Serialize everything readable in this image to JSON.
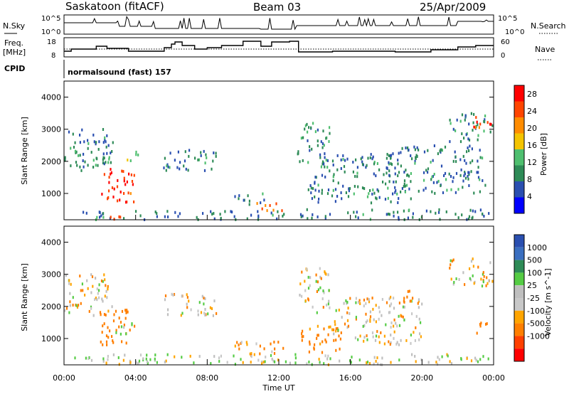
{
  "header": {
    "station": "Saskatoon (fitACF)",
    "beam": "Beam 03",
    "date": "25/Apr/2009"
  },
  "strip_labels": {
    "nsky": "N.Sky",
    "nsearch": "N.Search",
    "freq_line1": "Freq.",
    "freq_line2": "[MHz]",
    "nave": "Nave",
    "cpid": "CPID",
    "cpid_value": "normalsound (fast) 157"
  },
  "strip_ticks": {
    "nsky_top": "10^5",
    "nsky_bottom": "10^0",
    "nsearch_top": "10^5",
    "nsearch_bottom": "10^0",
    "freq_top": "18",
    "freq_bottom": "8",
    "nave_top": "60",
    "nave_bottom": "0"
  },
  "colors": {
    "power_scale": [
      "#0000ff",
      "#2a4fb0",
      "#2e8b57",
      "#4fbf6f",
      "#f4c400",
      "#ff8c00",
      "#ff4500",
      "#ff0000"
    ],
    "velocity_scale": [
      "#2a4fb0",
      "#3a6fc0",
      "#2e8b57",
      "#55cc44",
      "#bfbfbf",
      "#c8c8c8",
      "#ffa500",
      "#ff7f00",
      "#ff4000",
      "#ff0000"
    ]
  },
  "chart_data": [
    {
      "type": "heatmap",
      "panel": "power",
      "xlabel": "",
      "ylabel": "Slant Range [km]",
      "xlim": [
        "00:00",
        "24:00"
      ],
      "ylim": [
        180,
        4500
      ],
      "y_ticks": [
        "1000",
        "2000",
        "3000",
        "4000"
      ],
      "colorbar": {
        "label": "Power [dB]",
        "ticks": [
          "4",
          "8",
          "12",
          "16",
          "20",
          "24",
          "28"
        ],
        "range": [
          0,
          30
        ]
      },
      "regions": [
        {
          "t0": 0.0,
          "t1": 2.7,
          "r0": 1700,
          "r1": 3000,
          "v": 8
        },
        {
          "t0": 2.0,
          "t1": 3.9,
          "r0": 700,
          "r1": 1800,
          "v": 26
        },
        {
          "t0": 1.5,
          "t1": 2.5,
          "r0": 1800,
          "r1": 2200,
          "v": 12
        },
        {
          "t0": 3.5,
          "t1": 4.2,
          "r0": 2000,
          "r1": 2400,
          "v": 14
        },
        {
          "t0": 5.5,
          "t1": 8.5,
          "r0": 1700,
          "r1": 2400,
          "v": 8
        },
        {
          "t0": 9.5,
          "t1": 11.2,
          "r0": 600,
          "r1": 1000,
          "v": 8
        },
        {
          "t0": 10.7,
          "t1": 12.3,
          "r0": 400,
          "r1": 700,
          "v": 22
        },
        {
          "t0": 13.0,
          "t1": 14.8,
          "r0": 1800,
          "r1": 3200,
          "v": 10
        },
        {
          "t0": 14.0,
          "t1": 18.5,
          "r0": 1500,
          "r1": 2300,
          "v": 8
        },
        {
          "t0": 13.5,
          "t1": 19.5,
          "r0": 700,
          "r1": 1400,
          "v": 8
        },
        {
          "t0": 18.0,
          "t1": 23.5,
          "r0": 1000,
          "r1": 2500,
          "v": 8
        },
        {
          "t0": 21.5,
          "t1": 23.9,
          "r0": 2600,
          "r1": 3500,
          "v": 9
        },
        {
          "t0": 22.8,
          "t1": 23.9,
          "r0": 3000,
          "r1": 3500,
          "v": 24
        },
        {
          "t0": 0.5,
          "t1": 12.3,
          "r0": 180,
          "r1": 450,
          "v": 8
        },
        {
          "t0": 13.0,
          "t1": 24.0,
          "r0": 180,
          "r1": 500,
          "v": 8
        },
        {
          "t0": 2.0,
          "t1": 3.5,
          "r0": 180,
          "r1": 350,
          "v": 26
        }
      ]
    },
    {
      "type": "heatmap",
      "panel": "velocity",
      "xlabel": "Time UT",
      "ylabel": "Slant Range [km]",
      "xlim": [
        "00:00",
        "24:00"
      ],
      "ylim": [
        180,
        4500
      ],
      "x_ticks": [
        "00:00",
        "04:00",
        "08:00",
        "12:00",
        "16:00",
        "20:00",
        "00:00"
      ],
      "y_ticks": [
        "1000",
        "2000",
        "3000",
        "4000"
      ],
      "colorbar": {
        "label": "Velocity [m s^-1]",
        "ticks": [
          "1000",
          "500",
          "100",
          "25",
          "-25",
          "-100",
          "-500",
          "-1000"
        ]
      },
      "regions": [
        {
          "t0": 0.0,
          "t1": 2.7,
          "r0": 1700,
          "r1": 3000,
          "v": 0
        },
        {
          "t0": 2.0,
          "t1": 3.9,
          "r0": 800,
          "r1": 1900,
          "v": -300
        },
        {
          "t0": 2.8,
          "t1": 3.8,
          "r0": 1100,
          "r1": 1500,
          "v": 150
        },
        {
          "t0": 5.5,
          "t1": 8.5,
          "r0": 1700,
          "r1": 2400,
          "v": 0
        },
        {
          "t0": 9.5,
          "t1": 12.3,
          "r0": 400,
          "r1": 900,
          "v": -150
        },
        {
          "t0": 13.0,
          "t1": 14.8,
          "r0": 1800,
          "r1": 3200,
          "v": 0
        },
        {
          "t0": 13.0,
          "t1": 15.5,
          "r0": 500,
          "r1": 1400,
          "v": -200
        },
        {
          "t0": 15.0,
          "t1": 20.0,
          "r0": 800,
          "r1": 2300,
          "v": 0
        },
        {
          "t0": 18.5,
          "t1": 19.5,
          "r0": 2000,
          "r1": 2500,
          "v": -300
        },
        {
          "t0": 21.5,
          "t1": 23.9,
          "r0": 2600,
          "r1": 3500,
          "v": 0
        },
        {
          "t0": 23.0,
          "t1": 23.9,
          "r0": 1100,
          "r1": 1500,
          "v": -300
        },
        {
          "t0": 0.5,
          "t1": 24.0,
          "r0": 180,
          "r1": 500,
          "v": 60
        }
      ]
    }
  ]
}
